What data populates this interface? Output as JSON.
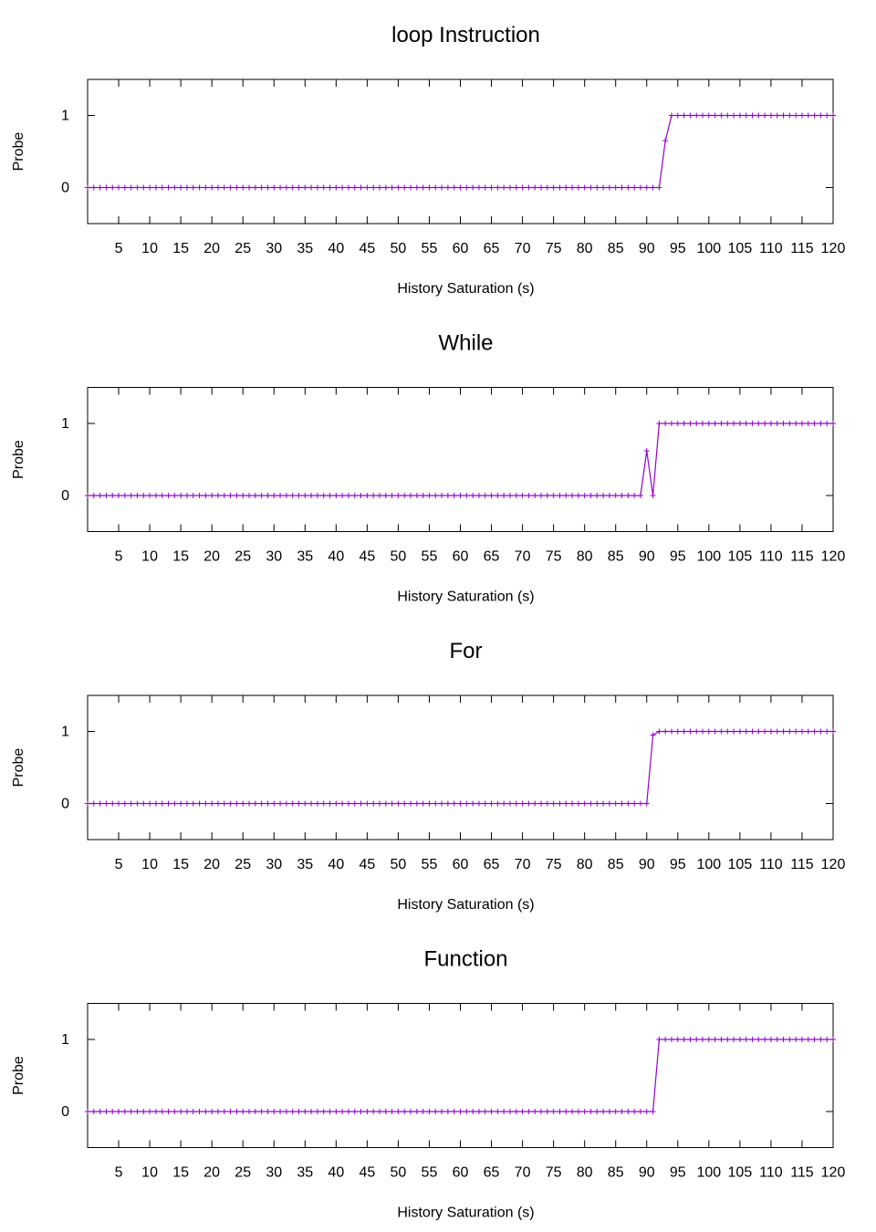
{
  "chart_data": [
    {
      "type": "line",
      "title": "loop Instruction",
      "xlabel": "History Saturation (s)",
      "ylabel": "Probe",
      "xlim": [
        0,
        120
      ],
      "ylim": [
        -0.5,
        1.5
      ],
      "xticks": [
        5,
        10,
        15,
        20,
        25,
        30,
        35,
        40,
        45,
        50,
        55,
        60,
        65,
        70,
        75,
        80,
        85,
        90,
        95,
        100,
        105,
        110,
        115,
        120
      ],
      "yticks": [
        0,
        1
      ],
      "grid": false,
      "legend": "none",
      "color": "#9400d3",
      "series": [
        {
          "x_start": 0,
          "x_end": 120,
          "x_step": 1,
          "default": 0,
          "overrides": {
            "93": 0.65
          },
          "ones_from": 94
        }
      ]
    },
    {
      "type": "line",
      "title": "While",
      "xlabel": "History Saturation (s)",
      "ylabel": "Probe",
      "xlim": [
        0,
        120
      ],
      "ylim": [
        -0.5,
        1.5
      ],
      "xticks": [
        5,
        10,
        15,
        20,
        25,
        30,
        35,
        40,
        45,
        50,
        55,
        60,
        65,
        70,
        75,
        80,
        85,
        90,
        95,
        100,
        105,
        110,
        115,
        120
      ],
      "yticks": [
        0,
        1
      ],
      "grid": false,
      "legend": "none",
      "color": "#9400d3",
      "series": [
        {
          "x_start": 0,
          "x_end": 120,
          "x_step": 1,
          "default": 0,
          "overrides": {
            "90": 0.62,
            "91": 0
          },
          "ones_from": 92
        }
      ]
    },
    {
      "type": "line",
      "title": "For",
      "xlabel": "History Saturation (s)",
      "ylabel": "Probe",
      "xlim": [
        0,
        120
      ],
      "ylim": [
        -0.5,
        1.5
      ],
      "xticks": [
        5,
        10,
        15,
        20,
        25,
        30,
        35,
        40,
        45,
        50,
        55,
        60,
        65,
        70,
        75,
        80,
        85,
        90,
        95,
        100,
        105,
        110,
        115,
        120
      ],
      "yticks": [
        0,
        1
      ],
      "grid": false,
      "legend": "none",
      "color": "#9400d3",
      "series": [
        {
          "x_start": 0,
          "x_end": 120,
          "x_step": 1,
          "default": 0,
          "overrides": {
            "91": 0.95
          },
          "ones_from": 92
        }
      ]
    },
    {
      "type": "line",
      "title": "Function",
      "xlabel": "History Saturation (s)",
      "ylabel": "Probe",
      "xlim": [
        0,
        120
      ],
      "ylim": [
        -0.5,
        1.5
      ],
      "xticks": [
        5,
        10,
        15,
        20,
        25,
        30,
        35,
        40,
        45,
        50,
        55,
        60,
        65,
        70,
        75,
        80,
        85,
        90,
        95,
        100,
        105,
        110,
        115,
        120
      ],
      "yticks": [
        0,
        1
      ],
      "grid": false,
      "legend": "none",
      "color": "#9400d3",
      "series": [
        {
          "x_start": 0,
          "x_end": 120,
          "x_step": 1,
          "default": 0,
          "overrides": {},
          "ones_from": 92
        }
      ]
    }
  ]
}
